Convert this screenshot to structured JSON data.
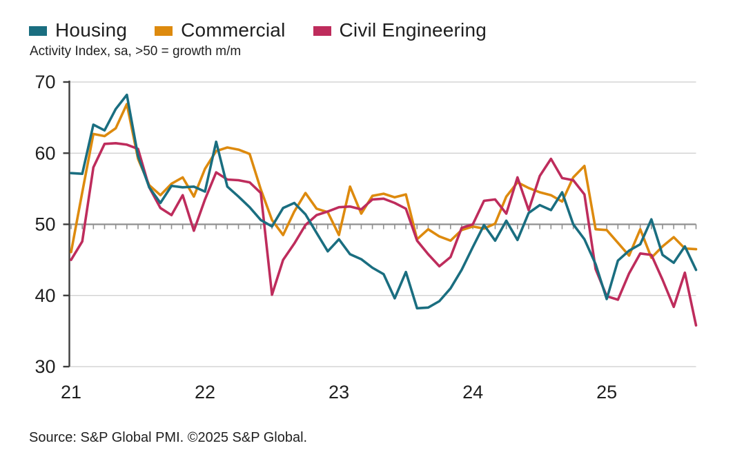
{
  "legend": [
    {
      "label": "Housing",
      "color": "#1A6E80"
    },
    {
      "label": "Commercial",
      "color": "#DD8A0E"
    },
    {
      "label": "Civil Engineering",
      "color": "#BE2C5C"
    }
  ],
  "subtitle": "Activity Index, sa, >50 = growth m/m",
  "source": "Source: S&P Global PMI. ©2025 S&P Global.",
  "chart_data": {
    "type": "line",
    "x_start": "2021-01",
    "x_frequency": "monthly",
    "n_points": 57,
    "x_tick_labels": [
      "21",
      "22",
      "23",
      "24",
      "25"
    ],
    "x_tick_month_index": [
      0,
      12,
      24,
      36,
      48
    ],
    "ylim": [
      30,
      70
    ],
    "yticks": [
      30,
      40,
      50,
      60,
      70
    ],
    "baseline": 50,
    "grid": "horizontal",
    "legend_position": "top-left",
    "colors": {
      "grid": "#cccccc",
      "baseline": "#8f8f8f",
      "axis": "#3d3d3d"
    },
    "series": [
      {
        "name": "Housing",
        "color": "#1A6E80",
        "values": [
          57.2,
          57.1,
          64.0,
          63.2,
          66.2,
          68.2,
          59.6,
          55.2,
          53.0,
          55.4,
          55.2,
          55.3,
          54.6,
          61.6,
          55.3,
          53.9,
          52.4,
          50.6,
          49.7,
          52.3,
          53.0,
          51.4,
          48.8,
          46.2,
          47.9,
          45.8,
          45.1,
          43.9,
          43.0,
          39.6,
          43.3,
          38.2,
          38.3,
          39.2,
          41.0,
          43.6,
          46.8,
          49.9,
          47.7,
          50.5,
          47.8,
          51.6,
          52.7,
          52.0,
          54.5,
          50.0,
          47.9,
          44.4,
          39.5,
          44.9,
          46.3,
          47.2,
          50.7,
          45.7,
          44.6,
          46.9,
          43.6
        ]
      },
      {
        "name": "Commercial",
        "color": "#DD8A0E",
        "values": [
          46.1,
          54.5,
          62.7,
          62.4,
          63.5,
          66.9,
          59.2,
          55.5,
          54.1,
          55.7,
          56.6,
          53.9,
          57.8,
          60.3,
          60.8,
          60.5,
          59.9,
          54.9,
          50.6,
          48.5,
          51.8,
          54.4,
          52.2,
          51.7,
          48.5,
          55.3,
          51.5,
          54.0,
          54.3,
          53.8,
          54.2,
          47.9,
          49.3,
          48.3,
          47.7,
          49.2,
          49.7,
          49.4,
          50.1,
          53.9,
          55.9,
          55.1,
          54.5,
          54.1,
          53.2,
          56.6,
          58.2,
          49.3,
          49.2,
          47.4,
          45.6,
          49.3,
          45.3,
          46.9,
          48.2,
          46.6,
          46.5
        ]
      },
      {
        "name": "Civil Engineering",
        "color": "#BE2C5C",
        "values": [
          45.0,
          47.6,
          58.0,
          61.3,
          61.4,
          61.2,
          60.6,
          55.2,
          52.3,
          51.3,
          54.1,
          49.1,
          53.5,
          57.3,
          56.3,
          56.2,
          55.9,
          54.4,
          40.1,
          45.0,
          47.3,
          49.9,
          51.3,
          51.8,
          52.4,
          52.5,
          52.1,
          53.5,
          53.6,
          53.0,
          52.2,
          47.7,
          45.8,
          44.1,
          45.4,
          49.5,
          50.0,
          53.3,
          53.5,
          51.5,
          56.6,
          52.0,
          56.8,
          59.2,
          56.5,
          56.2,
          54.2,
          43.7,
          39.9,
          39.4,
          43.1,
          45.9,
          45.7,
          42.2,
          38.4,
          43.2,
          35.8
        ]
      }
    ]
  }
}
